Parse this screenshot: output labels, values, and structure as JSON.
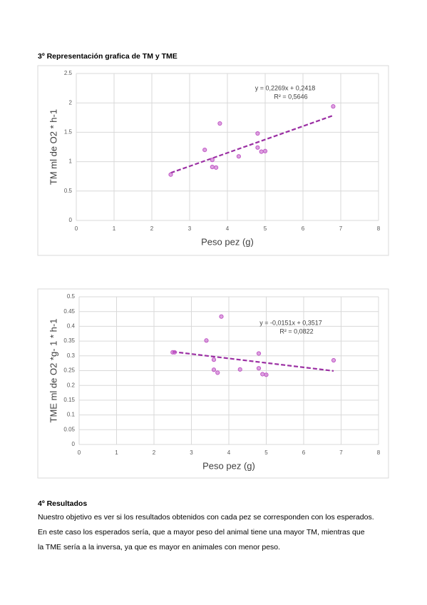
{
  "section3": {
    "title": "3º Representación grafica de TM y TME"
  },
  "chart_data": [
    {
      "type": "scatter",
      "x_label": "Peso pez (g)",
      "y_label": "TM ml de O2 * h-1",
      "x": [
        2.5,
        3.4,
        3.6,
        3.6,
        3.7,
        3.8,
        4.3,
        4.8,
        4.8,
        4.9,
        5.0,
        6.8
      ],
      "series": [
        {
          "color": "#c158c6",
          "values": [
            0.78,
            1.2,
            1.03,
            0.91,
            0.9,
            1.65,
            1.09,
            1.48,
            1.24,
            1.17,
            1.18,
            1.94
          ]
        }
      ],
      "trendline": {
        "x": [
          2.5,
          6.8
        ],
        "values": [
          0.809,
          1.785
        ],
        "color": "#9b2fa3",
        "equation": "y = 0,2269x + 0,2418",
        "r2": "R² = 0,5646"
      },
      "xlim": [
        0,
        8
      ],
      "xticks": [
        0,
        1,
        2,
        3,
        4,
        5,
        6,
        7,
        8
      ],
      "ylim": [
        0,
        2.5
      ],
      "yticks": [
        0,
        0.5,
        1,
        1.5,
        2,
        2.5
      ],
      "grid": true
    },
    {
      "type": "scatter",
      "x_label": "Peso pez (g)",
      "y_label": "TME ml de O2 *g- 1 * h-1",
      "x": [
        2.5,
        2.55,
        3.4,
        3.6,
        3.6,
        3.7,
        3.8,
        4.3,
        4.8,
        4.8,
        4.9,
        5.0,
        6.8
      ],
      "series": [
        {
          "color": "#c158c6",
          "values": [
            0.312,
            0.312,
            0.352,
            0.287,
            0.253,
            0.243,
            0.433,
            0.254,
            0.308,
            0.258,
            0.238,
            0.236,
            0.285
          ]
        }
      ],
      "trendline": {
        "x": [
          2.5,
          6.8
        ],
        "values": [
          0.314,
          0.249
        ],
        "color": "#9b2fa3",
        "equation": "y = -0,0151x + 0,3517",
        "r2": "R² = 0,0822"
      },
      "xlim": [
        0,
        8
      ],
      "xticks": [
        0,
        1,
        2,
        3,
        4,
        5,
        6,
        7,
        8
      ],
      "ylim": [
        0,
        0.5
      ],
      "yticks": [
        0,
        0.05,
        0.1,
        0.15,
        0.2,
        0.25,
        0.3,
        0.35,
        0.4,
        0.45,
        0.5
      ],
      "grid": true
    }
  ],
  "section4": {
    "title": "4º Resultados",
    "lines": [
      "Nuestro objetivo es ver si los resultados obtenidos con cada pez se corresponden con los esperados.",
      "En este caso los esperados sería, que a mayor peso del animal tiene una mayor TM, mientras que",
      "la TME sería a la inversa, ya que es mayor en animales con menor peso."
    ]
  }
}
